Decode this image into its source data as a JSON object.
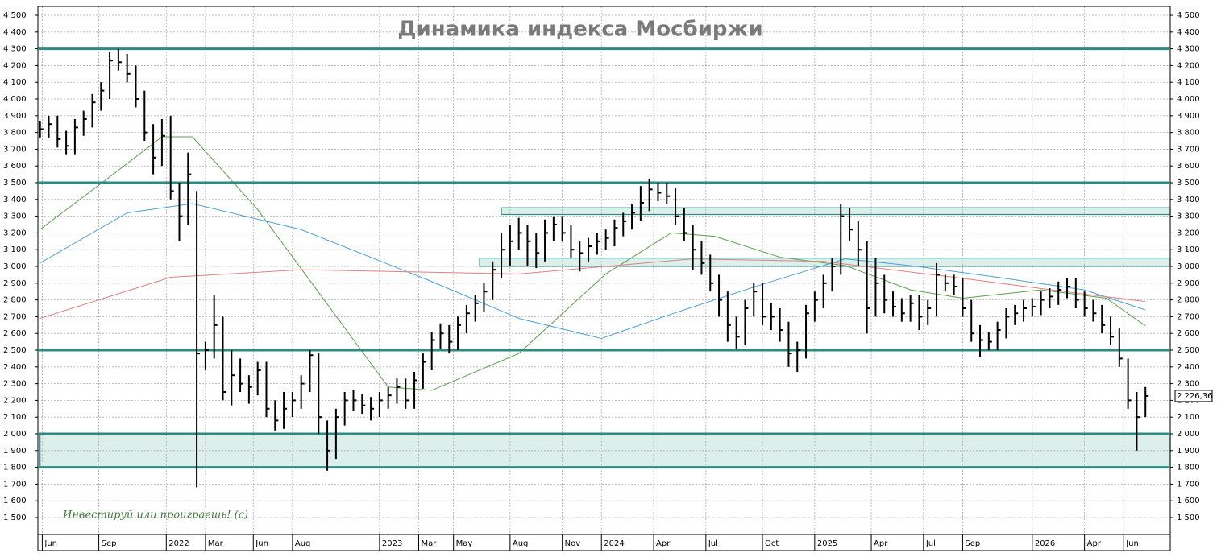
{
  "chart_data": {
    "type": "ohlc",
    "title": "Динамика индекса Мосбиржи",
    "annotation": "Инвестируй или проиграешь! (с)",
    "color": "#000000",
    "grid": true,
    "xlim": [
      -0.5,
      259.7
    ],
    "ylim": [
      1399,
      4553
    ],
    "xticks": [
      {
        "value": 0.5,
        "label": "Jun"
      },
      {
        "value": 13.5,
        "label": "Sep"
      },
      {
        "value": 29,
        "label": "2022"
      },
      {
        "value": 38,
        "label": "Mar"
      },
      {
        "value": 49,
        "label": "Jun"
      },
      {
        "value": 58,
        "label": "Aug"
      },
      {
        "value": 78,
        "label": "2023"
      },
      {
        "value": 87,
        "label": "Mar"
      },
      {
        "value": 95,
        "label": "May"
      },
      {
        "value": 108,
        "label": "Aug"
      },
      {
        "value": 120,
        "label": "Nov"
      },
      {
        "value": 129,
        "label": "2024"
      },
      {
        "value": 141,
        "label": "Apr"
      },
      {
        "value": 153,
        "label": "Jul"
      },
      {
        "value": 166,
        "label": "Oct"
      },
      {
        "value": 178,
        "label": "2025"
      },
      {
        "value": 191,
        "label": "Apr"
      },
      {
        "value": 203,
        "label": "Jul"
      },
      {
        "value": 212,
        "label": "Sep"
      },
      {
        "value": 228,
        "label": "2026"
      },
      {
        "value": 240,
        "label": "Apr"
      },
      {
        "value": 249,
        "label": "Jun"
      }
    ],
    "yticks": [
      {
        "value": 1500,
        "label": "1 500"
      },
      {
        "value": 1600,
        "label": "1 600"
      },
      {
        "value": 1700,
        "label": "1 700"
      },
      {
        "value": 1800,
        "label": "1 800"
      },
      {
        "value": 1900,
        "label": "1 900"
      },
      {
        "value": 2000,
        "label": "2 000"
      },
      {
        "value": 2100,
        "label": "2 100"
      },
      {
        "value": 2200,
        "label": "2 200"
      },
      {
        "value": 2300,
        "label": "2 300"
      },
      {
        "value": 2400,
        "label": "2 400"
      },
      {
        "value": 2500,
        "label": "2 500"
      },
      {
        "value": 2600,
        "label": "2 600"
      },
      {
        "value": 2700,
        "label": "2 700"
      },
      {
        "value": 2800,
        "label": "2 800"
      },
      {
        "value": 2900,
        "label": "2 900"
      },
      {
        "value": 3000,
        "label": "3 000"
      },
      {
        "value": 3100,
        "label": "3 100"
      },
      {
        "value": 3200,
        "label": "3 200"
      },
      {
        "value": 3300,
        "label": "3 300"
      },
      {
        "value": 3400,
        "label": "3 400"
      },
      {
        "value": 3500,
        "label": "3 500"
      },
      {
        "value": 3600,
        "label": "3 600"
      },
      {
        "value": 3700,
        "label": "3 700"
      },
      {
        "value": 3800,
        "label": "3 800"
      },
      {
        "value": 3900,
        "label": "3 900"
      },
      {
        "value": 4000,
        "label": "4 000"
      },
      {
        "value": 4100,
        "label": "4 100"
      },
      {
        "value": 4200,
        "label": "4 200"
      },
      {
        "value": 4300,
        "label": "4 300"
      },
      {
        "value": 4400,
        "label": "4 400"
      },
      {
        "value": 4500,
        "label": "4 500"
      }
    ],
    "x": [
      0,
      2,
      4,
      6,
      8,
      10,
      12,
      14,
      16,
      18,
      20,
      22,
      24,
      26,
      28,
      30,
      32,
      34,
      36,
      38,
      40,
      42,
      44,
      46,
      48,
      50,
      52,
      54,
      56,
      58,
      60,
      62,
      64,
      66,
      68,
      70,
      72,
      74,
      76,
      78,
      80,
      82,
      84,
      86,
      88,
      90,
      92,
      94,
      96,
      98,
      100,
      102,
      104,
      106,
      108,
      110,
      112,
      114,
      116,
      118,
      120,
      122,
      124,
      126,
      128,
      130,
      132,
      134,
      136,
      138,
      140,
      142,
      144,
      146,
      148,
      150,
      152,
      154,
      156,
      158,
      160,
      162,
      164,
      166,
      168,
      170,
      172,
      174,
      176,
      178,
      180,
      182,
      184,
      186,
      188,
      190,
      192,
      194,
      196,
      198,
      200,
      202,
      204,
      206,
      208,
      210,
      212,
      214,
      216,
      218,
      220,
      222,
      224,
      226,
      228,
      230,
      232,
      234,
      236,
      238,
      240,
      242,
      244,
      246,
      248,
      250,
      252,
      254
    ],
    "high": [
      3870,
      3900,
      3900,
      3810,
      3880,
      3930,
      4030,
      4100,
      4280,
      4300,
      4270,
      4200,
      4050,
      3850,
      3880,
      3900,
      3500,
      3680,
      3450,
      2550,
      2830,
      2700,
      2500,
      2450,
      2350,
      2430,
      2430,
      2200,
      2250,
      2250,
      2350,
      2500,
      2480,
      2080,
      2150,
      2250,
      2260,
      2240,
      2220,
      2250,
      2280,
      2330,
      2330,
      2370,
      2480,
      2610,
      2660,
      2650,
      2700,
      2770,
      2830,
      2900,
      3030,
      3200,
      3250,
      3290,
      3250,
      3200,
      3280,
      3300,
      3300,
      3250,
      3150,
      3170,
      3200,
      3220,
      3280,
      3320,
      3370,
      3480,
      3520,
      3500,
      3500,
      3470,
      3350,
      3250,
      3150,
      3070,
      2950,
      2850,
      2700,
      2800,
      2900,
      2900,
      2780,
      2750,
      2670,
      2550,
      2770,
      2850,
      2950,
      3050,
      3370,
      3350,
      3270,
      3150,
      3050,
      2950,
      2850,
      2810,
      2830,
      2830,
      2800,
      3020,
      2950,
      2950,
      2930,
      2800,
      2650,
      2610,
      2670,
      2750,
      2770,
      2800,
      2810,
      2850,
      2870,
      2910,
      2930,
      2930,
      2850,
      2800,
      2770,
      2700,
      2630,
      2450,
      2250,
      2280
    ],
    "low": [
      3770,
      3770,
      3710,
      3670,
      3670,
      3780,
      3830,
      3930,
      4000,
      4170,
      4100,
      3950,
      3750,
      3550,
      3600,
      3400,
      3150,
      3250,
      1680,
      2380,
      2450,
      2200,
      2170,
      2250,
      2180,
      2230,
      2100,
      2020,
      2030,
      2100,
      2150,
      2250,
      2000,
      1780,
      1850,
      2050,
      2140,
      2120,
      2080,
      2100,
      2150,
      2180,
      2150,
      2150,
      2270,
      2380,
      2510,
      2480,
      2500,
      2600,
      2670,
      2730,
      2800,
      2930,
      3000,
      3100,
      3000,
      2990,
      3030,
      3150,
      3150,
      3050,
      2970,
      3030,
      3070,
      3100,
      3120,
      3180,
      3220,
      3270,
      3330,
      3390,
      3370,
      3250,
      3150,
      2980,
      2950,
      2850,
      2700,
      2550,
      2510,
      2530,
      2700,
      2650,
      2620,
      2550,
      2400,
      2370,
      2450,
      2670,
      2750,
      2850,
      2950,
      3150,
      3000,
      2600,
      2700,
      2720,
      2700,
      2670,
      2670,
      2620,
      2650,
      2700,
      2850,
      2830,
      2700,
      2550,
      2460,
      2500,
      2500,
      2570,
      2650,
      2670,
      2700,
      2710,
      2750,
      2770,
      2810,
      2750,
      2700,
      2670,
      2600,
      2530,
      2400,
      2150,
      1900,
      2100
    ],
    "close": [
      3820,
      3850,
      3760,
      3720,
      3830,
      3880,
      3980,
      4050,
      4230,
      4220,
      4150,
      4000,
      3800,
      3650,
      3780,
      3450,
      3300,
      3550,
      2480,
      2500,
      2650,
      2250,
      2350,
      2300,
      2280,
      2380,
      2150,
      2080,
      2150,
      2200,
      2300,
      2470,
      2100,
      1900,
      2100,
      2200,
      2200,
      2170,
      2150,
      2200,
      2230,
      2280,
      2200,
      2320,
      2430,
      2560,
      2600,
      2550,
      2650,
      2720,
      2780,
      2850,
      2980,
      3100,
      3150,
      3200,
      3150,
      3080,
      3200,
      3250,
      3200,
      3100,
      3080,
      3120,
      3150,
      3170,
      3230,
      3270,
      3320,
      3380,
      3460,
      3440,
      3420,
      3300,
      3200,
      3100,
      3020,
      2900,
      2800,
      2650,
      2580,
      2750,
      2850,
      2700,
      2700,
      2620,
      2480,
      2500,
      2720,
      2800,
      2900,
      3000,
      3300,
      3220,
      3100,
      2750,
      2900,
      2800,
      2760,
      2720,
      2780,
      2700,
      2750,
      2950,
      2900,
      2880,
      2750,
      2600,
      2560,
      2550,
      2620,
      2700,
      2720,
      2750,
      2760,
      2800,
      2820,
      2860,
      2880,
      2800,
      2750,
      2720,
      2650,
      2580,
      2450,
      2200,
      2100,
      2226.36
    ],
    "last_price": {
      "value": 2226.36,
      "label": "2 226,36"
    },
    "lines": [
      {
        "color": "#5aa04a",
        "x": [
          0,
          14,
          28,
          35,
          50,
          65,
          80,
          90,
          110,
          130,
          145,
          155,
          170,
          185,
          200,
          212,
          230,
          245,
          254
        ],
        "values": [
          3221,
          3495,
          3774,
          3774,
          3340,
          2810,
          2280,
          2260,
          2480,
          2955,
          3200,
          3180,
          3055,
          3005,
          2860,
          2810,
          2860,
          2810,
          2645
        ]
      },
      {
        "color": "#4a9fd8",
        "x": [
          0,
          20,
          35,
          60,
          90,
          110,
          129,
          145,
          165,
          185,
          200,
          220,
          240,
          254
        ],
        "values": [
          3020,
          3320,
          3375,
          3220,
          2910,
          2690,
          2570,
          2715,
          2885,
          3045,
          3005,
          2935,
          2860,
          2740
        ]
      },
      {
        "color": "#e08080",
        "x": [
          0,
          30,
          60,
          110,
          150,
          180,
          210,
          240,
          254
        ],
        "values": [
          2690,
          2935,
          2980,
          2955,
          3045,
          3030,
          2935,
          2835,
          2790
        ]
      }
    ],
    "levels": [
      4300,
      3500,
      2500,
      2000,
      1800
    ],
    "zones": [
      {
        "low": 1800,
        "high": 2000,
        "x_start": 0
      },
      {
        "low": 3310,
        "high": 3350,
        "x_start": 106
      },
      {
        "low": 3000,
        "high": 3050,
        "x_start": 101
      }
    ]
  }
}
